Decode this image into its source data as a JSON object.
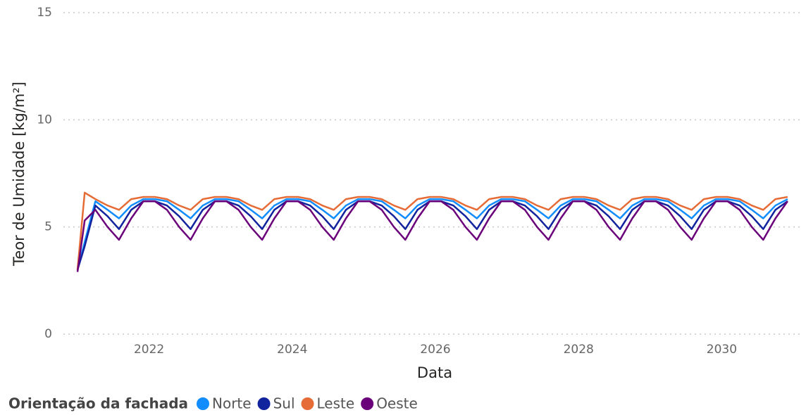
{
  "chart_data": {
    "type": "line",
    "x_label": "Data",
    "y_label": "Teor de Umidade [kg/m²]",
    "legend_title": "Orientação da fachada",
    "legend_position": "bottom-left",
    "grid": true,
    "xlim": [
      2021,
      2031
    ],
    "xticks": [
      2022,
      2024,
      2026,
      2028,
      2030
    ],
    "ylim": [
      0,
      15
    ],
    "yticks": [
      0,
      5,
      10,
      15
    ],
    "x": [
      2021,
      2021.1,
      2021.25,
      2021.42,
      2021.58,
      2021.75,
      2021.92,
      2022.08,
      2022.25,
      2022.42,
      2022.58,
      2022.75,
      2022.92,
      2023.08,
      2023.25,
      2023.42,
      2023.58,
      2023.75,
      2023.92,
      2024.08,
      2024.25,
      2024.42,
      2024.58,
      2024.75,
      2024.92,
      2025.08,
      2025.25,
      2025.42,
      2025.58,
      2025.75,
      2025.92,
      2026.08,
      2026.25,
      2026.42,
      2026.58,
      2026.75,
      2026.92,
      2027.08,
      2027.25,
      2027.42,
      2027.58,
      2027.75,
      2027.92,
      2028.08,
      2028.25,
      2028.42,
      2028.58,
      2028.75,
      2028.92,
      2029.08,
      2029.25,
      2029.42,
      2029.58,
      2029.75,
      2029.92,
      2030.08,
      2030.25,
      2030.42,
      2030.58,
      2030.75,
      2030.92
    ],
    "series": [
      {
        "name": "Norte",
        "color": "#118DFF",
        "values": [
          3.0,
          4.3,
          6.2,
          5.8,
          5.4,
          6.0,
          6.3,
          6.3,
          6.2,
          5.8,
          5.4,
          6.0,
          6.3,
          6.3,
          6.2,
          5.8,
          5.4,
          6.0,
          6.3,
          6.3,
          6.2,
          5.8,
          5.4,
          6.0,
          6.3,
          6.3,
          6.2,
          5.8,
          5.4,
          6.0,
          6.3,
          6.3,
          6.2,
          5.8,
          5.4,
          6.0,
          6.3,
          6.3,
          6.2,
          5.8,
          5.4,
          6.0,
          6.3,
          6.3,
          6.2,
          5.8,
          5.4,
          6.0,
          6.3,
          6.3,
          6.2,
          5.8,
          5.4,
          6.0,
          6.3,
          6.3,
          6.2,
          5.8,
          5.4,
          6.0,
          6.3
        ]
      },
      {
        "name": "Sul",
        "color": "#12239E",
        "values": [
          3.0,
          4.1,
          6.0,
          5.5,
          4.9,
          5.8,
          6.2,
          6.2,
          6.0,
          5.5,
          4.9,
          5.8,
          6.2,
          6.2,
          6.0,
          5.5,
          4.9,
          5.8,
          6.2,
          6.2,
          6.0,
          5.5,
          4.9,
          5.8,
          6.2,
          6.2,
          6.0,
          5.5,
          4.9,
          5.8,
          6.2,
          6.2,
          6.0,
          5.5,
          4.9,
          5.8,
          6.2,
          6.2,
          6.0,
          5.5,
          4.9,
          5.8,
          6.2,
          6.2,
          6.0,
          5.5,
          4.9,
          5.8,
          6.2,
          6.2,
          6.0,
          5.5,
          4.9,
          5.8,
          6.2,
          6.2,
          6.0,
          5.5,
          4.9,
          5.8,
          6.2
        ]
      },
      {
        "name": "Leste",
        "color": "#E66C37",
        "values": [
          3.0,
          6.6,
          6.3,
          6.0,
          5.8,
          6.3,
          6.4,
          6.4,
          6.3,
          6.0,
          5.8,
          6.3,
          6.4,
          6.4,
          6.3,
          6.0,
          5.8,
          6.3,
          6.4,
          6.4,
          6.3,
          6.0,
          5.8,
          6.3,
          6.4,
          6.4,
          6.3,
          6.0,
          5.8,
          6.3,
          6.4,
          6.4,
          6.3,
          6.0,
          5.8,
          6.3,
          6.4,
          6.4,
          6.3,
          6.0,
          5.8,
          6.3,
          6.4,
          6.4,
          6.3,
          6.0,
          5.8,
          6.3,
          6.4,
          6.4,
          6.3,
          6.0,
          5.8,
          6.3,
          6.4,
          6.4,
          6.3,
          6.0,
          5.8,
          6.3,
          6.4
        ]
      },
      {
        "name": "Oeste",
        "color": "#6B007B",
        "values": [
          2.9,
          5.3,
          5.8,
          5.0,
          4.4,
          5.4,
          6.2,
          6.2,
          5.8,
          5.0,
          4.4,
          5.4,
          6.2,
          6.2,
          5.8,
          5.0,
          4.4,
          5.4,
          6.2,
          6.2,
          5.8,
          5.0,
          4.4,
          5.4,
          6.2,
          6.2,
          5.8,
          5.0,
          4.4,
          5.4,
          6.2,
          6.2,
          5.8,
          5.0,
          4.4,
          5.4,
          6.2,
          6.2,
          5.8,
          5.0,
          4.4,
          5.4,
          6.2,
          6.2,
          5.8,
          5.0,
          4.4,
          5.4,
          6.2,
          6.2,
          5.8,
          5.0,
          4.4,
          5.4,
          6.2,
          6.2,
          5.8,
          5.0,
          4.4,
          5.4,
          6.2
        ]
      }
    ]
  }
}
